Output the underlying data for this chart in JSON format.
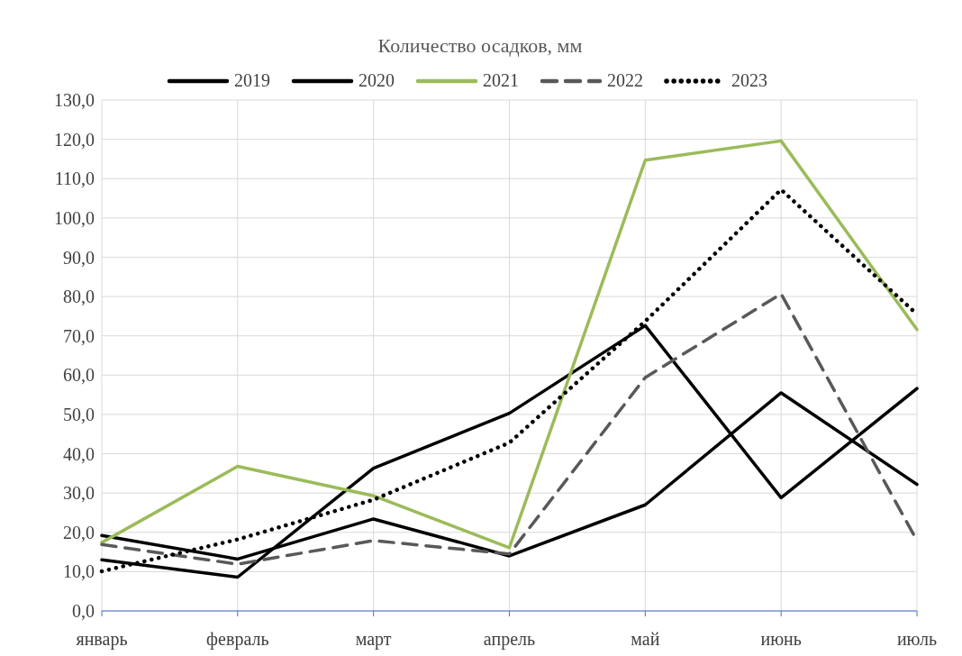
{
  "chart_data": {
    "type": "line",
    "title": "Количество осадков, мм",
    "categories": [
      "январь",
      "февраль",
      "март",
      "апрель",
      "май",
      "июнь",
      "июль"
    ],
    "series": [
      {
        "name": "2019",
        "color": "#000000",
        "line_style": "solid",
        "values": [
          13.0,
          8.6,
          36.3,
          50.3,
          72.6,
          28.8,
          56.6
        ]
      },
      {
        "name": "2020",
        "color": "#000000",
        "line_style": "solid",
        "values": [
          19.2,
          13.2,
          23.4,
          14.0,
          27.0,
          55.5,
          32.2
        ]
      },
      {
        "name": "2021",
        "color": "#9bbb59",
        "line_style": "solid",
        "values": [
          17.4,
          36.8,
          29.3,
          16.1,
          114.7,
          119.6,
          71.6
        ]
      },
      {
        "name": "2022",
        "color": "#595959",
        "line_style": "dashed",
        "values": [
          16.9,
          11.9,
          17.9,
          14.5,
          59.4,
          80.7,
          17.9
        ]
      },
      {
        "name": "2023",
        "color": "#000000",
        "line_style": "dotted",
        "values": [
          10.1,
          18.2,
          28.3,
          42.8,
          73.7,
          107.2,
          75.5
        ]
      }
    ],
    "ylim": [
      0,
      130
    ],
    "yticks": [
      {
        "value": 0,
        "label": "0,0"
      },
      {
        "value": 10,
        "label": "10,0"
      },
      {
        "value": 20,
        "label": "20,0"
      },
      {
        "value": 30,
        "label": "30,0"
      },
      {
        "value": 40,
        "label": "40,0"
      },
      {
        "value": 50,
        "label": "50,0"
      },
      {
        "value": 60,
        "label": "60,0"
      },
      {
        "value": 70,
        "label": "70,0"
      },
      {
        "value": 80,
        "label": "80,0"
      },
      {
        "value": 90,
        "label": "90,0"
      },
      {
        "value": 100,
        "label": "100,0"
      },
      {
        "value": 110,
        "label": "110,0"
      },
      {
        "value": 120,
        "label": "120,0"
      },
      {
        "value": 130,
        "label": "130,0"
      }
    ],
    "grid": true,
    "legend": "top",
    "marker": "none"
  }
}
